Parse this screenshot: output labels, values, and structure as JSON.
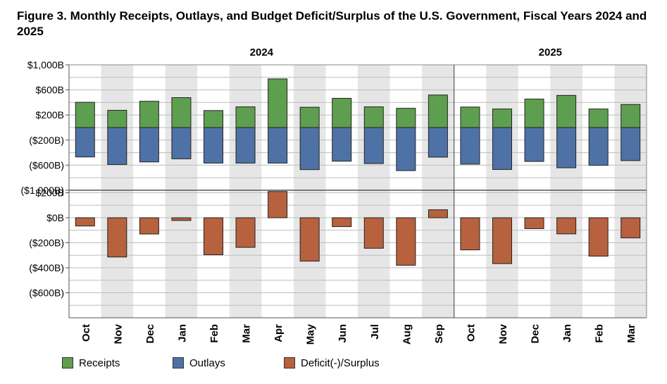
{
  "title": "Figure 3. Monthly Receipts, Outlays, and Budget Deficit/Surplus of the U.S. Government, Fiscal Years 2024 and 2025",
  "colors": {
    "receipts": "#5e9f4f",
    "outlays": "#4f72a6",
    "deficit": "#b8613e",
    "band": "#e6e6e6",
    "grid": "#bdbdbd"
  },
  "legend": {
    "receipts": "Receipts",
    "outlays": "Outlays",
    "deficit": "Deficit(-)/Surplus"
  },
  "chart_data": {
    "type": "bar",
    "year_labels": [
      "2024",
      "2025"
    ],
    "categories": [
      "Oct",
      "Nov",
      "Dec",
      "Jan",
      "Feb",
      "Mar",
      "Apr",
      "May",
      "Jun",
      "Jul",
      "Aug",
      "Sep",
      "Oct",
      "Nov",
      "Dec",
      "Jan",
      "Feb",
      "Mar"
    ],
    "top_panel": {
      "ylim": [
        -1000,
        1000
      ],
      "tick_labels": [
        "$1,000B",
        "$600B",
        "$200B",
        "($200B)",
        "($600B)",
        "($1,000B)"
      ],
      "series": [
        {
          "name": "Receipts",
          "values": [
            403,
            275,
            419,
            477,
            271,
            330,
            776,
            324,
            466,
            330,
            307,
            519,
            327,
            296,
            454,
            513,
            296,
            368
          ]
        },
        {
          "name": "Outlays",
          "values": [
            -469,
            -589,
            -549,
            -499,
            -567,
            -567,
            -567,
            -671,
            -537,
            -574,
            -687,
            -472,
            -584,
            -669,
            -541,
            -642,
            -603,
            -528
          ]
        }
      ]
    },
    "bottom_panel": {
      "ylim": [
        -800,
        220
      ],
      "tick_labels": [
        "$200B",
        "$0B",
        "($200B)",
        "($400B)",
        "($600B)"
      ],
      "series": [
        {
          "name": "Deficit(-)/Surplus",
          "values": [
            -66,
            -314,
            -130,
            -22,
            -296,
            -237,
            210,
            -347,
            -71,
            -244,
            -380,
            64,
            -257,
            -367,
            -87,
            -129,
            -307,
            -161
          ]
        }
      ]
    }
  }
}
